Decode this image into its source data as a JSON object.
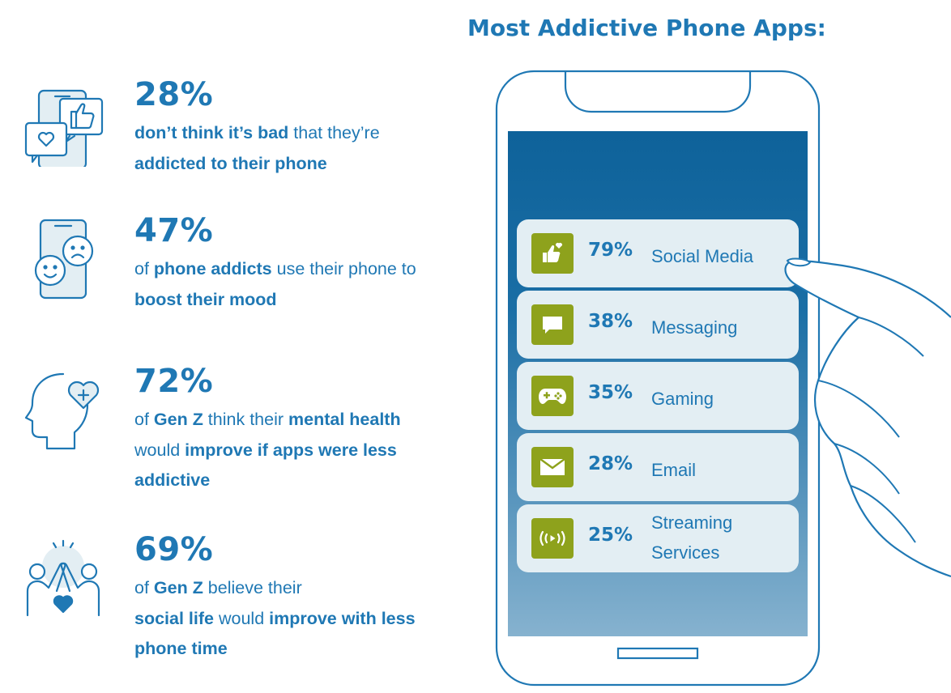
{
  "title": "Most Addictive Phone Apps:",
  "stats": [
    {
      "pct": "28%",
      "parts": [
        {
          "text": "don’t think it’s bad",
          "bold": true
        },
        {
          "text": " that they’re ",
          "bold": false
        },
        {
          "text": "addicted to their phone",
          "bold": true
        }
      ]
    },
    {
      "pct": "47%",
      "parts": [
        {
          "text": "of ",
          "bold": false
        },
        {
          "text": "phone addicts",
          "bold": true
        },
        {
          "text": " use their phone to ",
          "bold": false
        },
        {
          "text": "boost their mood",
          "bold": true
        }
      ]
    },
    {
      "pct": "72%",
      "parts": [
        {
          "text": "of ",
          "bold": false
        },
        {
          "text": "Gen Z",
          "bold": true
        },
        {
          "text": " think their ",
          "bold": false
        },
        {
          "text": "mental health",
          "bold": true
        },
        {
          "text": " would ",
          "bold": false
        },
        {
          "text": "improve if apps were less addictive",
          "bold": true
        }
      ]
    },
    {
      "pct": "69%",
      "parts": [
        {
          "text": "of ",
          "bold": false
        },
        {
          "text": "Gen Z",
          "bold": true
        },
        {
          "text": " believe their ",
          "bold": false
        },
        {
          "text": "social life",
          "bold": true
        },
        {
          "text": " would ",
          "bold": false
        },
        {
          "text": "improve with less phone time",
          "bold": true
        }
      ]
    }
  ],
  "apps": [
    {
      "pct": "79%",
      "name": "Social Media",
      "icon": "thumbs-up-heart-icon"
    },
    {
      "pct": "38%",
      "name": "Messaging",
      "icon": "message-bubble-icon"
    },
    {
      "pct": "35%",
      "name": "Gaming",
      "icon": "gamepad-icon"
    },
    {
      "pct": "28%",
      "name": "Email",
      "icon": "envelope-icon"
    },
    {
      "pct": "25%",
      "name": "Streaming Services",
      "icon": "broadcast-icon"
    }
  ],
  "colors": {
    "text": "#1f78b4",
    "screen_top": "#0e629a",
    "screen_bottom": "#86b2cf",
    "row_bg": "#e3eef3",
    "app_icon_bg": "#8ea21c"
  }
}
